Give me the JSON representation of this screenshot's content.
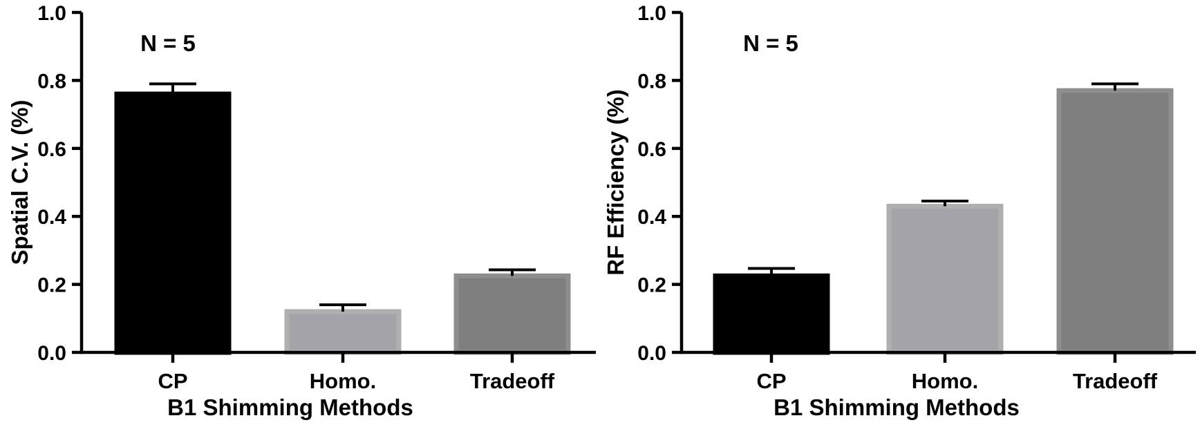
{
  "chart_data": [
    {
      "type": "bar",
      "categories": [
        "CP",
        "Homo.",
        "Tradeoff"
      ],
      "values": [
        0.76,
        0.12,
        0.225
      ],
      "errors": [
        0.03,
        0.02,
        0.018
      ],
      "xlabel": "B1 Shimming Methods",
      "ylabel": "Spatial C.V. (%)",
      "ylim": [
        0,
        1.0
      ],
      "yticks": [
        "0.0",
        "0.2",
        "0.4",
        "0.6",
        "0.8",
        "1.0"
      ],
      "annotation": "N = 5",
      "grid": false,
      "bar_colors": [
        "#000000",
        "#a4a4a8",
        "#7f7f7f"
      ]
    },
    {
      "type": "bar",
      "categories": [
        "CP",
        "Homo.",
        "Tradeoff"
      ],
      "values": [
        0.225,
        0.43,
        0.77
      ],
      "errors": [
        0.022,
        0.015,
        0.02
      ],
      "xlabel": "B1 Shimming Methods",
      "ylabel": "RF Efficiency (%)",
      "ylim": [
        0,
        1.0
      ],
      "yticks": [
        "0.0",
        "0.2",
        "0.4",
        "0.6",
        "0.8",
        "1.0"
      ],
      "annotation": "N = 5",
      "grid": false,
      "bar_colors": [
        "#000000",
        "#a4a4a8",
        "#7f7f7f"
      ]
    }
  ]
}
